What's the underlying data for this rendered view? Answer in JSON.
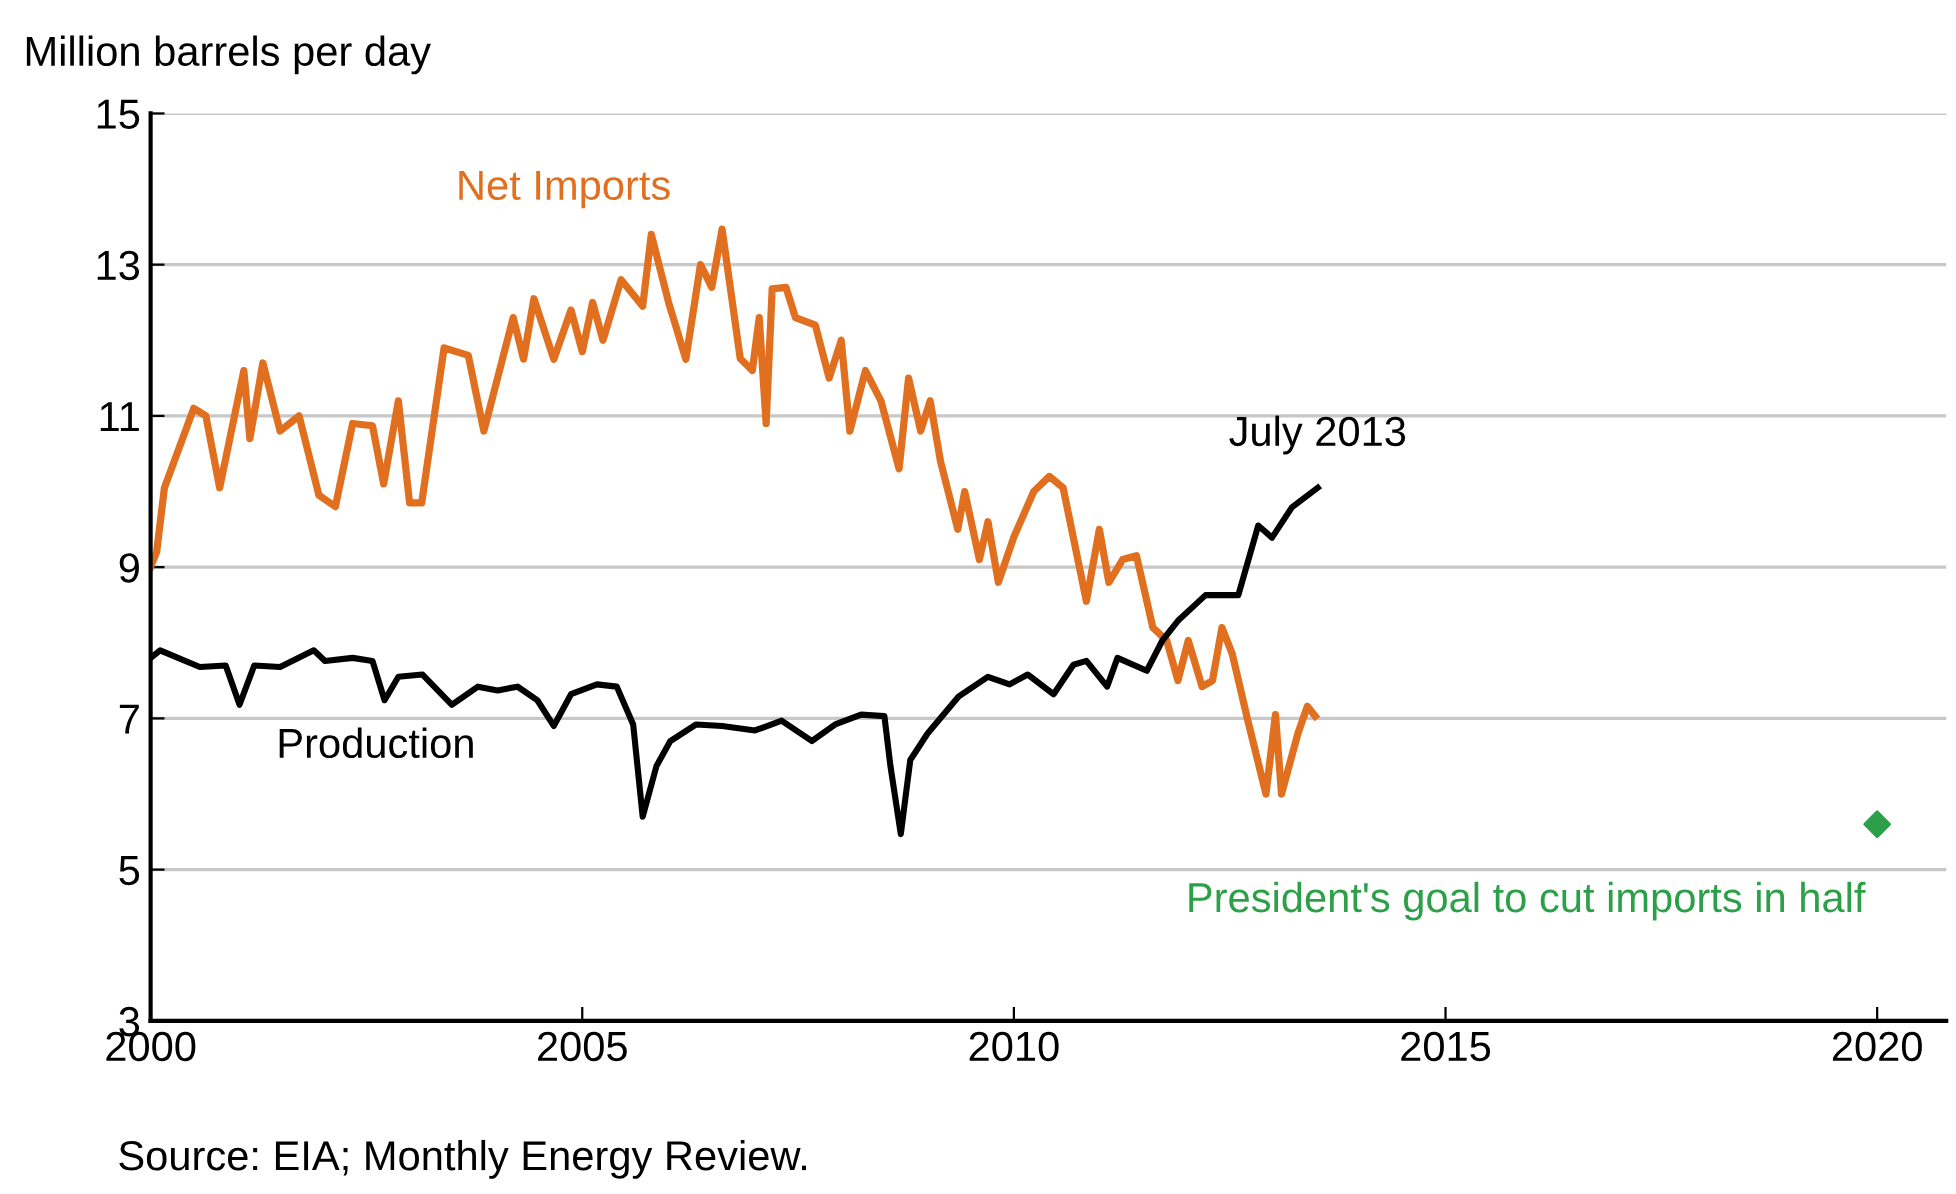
{
  "chart_data": {
    "type": "line",
    "ylabel": "Million barrels per day",
    "xlim": [
      2000,
      2020.8
    ],
    "xticks": [
      2000,
      2005,
      2010,
      2015,
      2020
    ],
    "ylim": [
      3,
      15
    ],
    "yticks": [
      3,
      5,
      7,
      9,
      11,
      13,
      15
    ],
    "grid": "y",
    "legend": false,
    "line_style": "solid",
    "annotations": [
      {
        "text": "July 2013",
        "x": 2013.52,
        "y": 10.05
      },
      "Source: EIA; Monthly Energy Review."
    ],
    "series": [
      {
        "name": "Net Imports",
        "color": "#e0701f",
        "x": [
          2000.0,
          2000.07,
          2000.16,
          2000.5,
          2000.64,
          2000.8,
          2001.08,
          2001.15,
          2001.3,
          2001.5,
          2001.72,
          2001.95,
          2002.14,
          2002.34,
          2002.57,
          2002.7,
          2002.87,
          2003.0,
          2003.14,
          2003.4,
          2003.68,
          2003.86,
          2004.2,
          2004.32,
          2004.44,
          2004.67,
          2004.87,
          2005.0,
          2005.12,
          2005.24,
          2005.45,
          2005.7,
          2005.8,
          2006.0,
          2006.2,
          2006.37,
          2006.5,
          2006.62,
          2006.83,
          2006.97,
          2007.05,
          2007.13,
          2007.2,
          2007.36,
          2007.47,
          2007.7,
          2007.86,
          2008.0,
          2008.1,
          2008.28,
          2008.46,
          2008.67,
          2008.78,
          2008.92,
          2009.03,
          2009.15,
          2009.35,
          2009.43,
          2009.6,
          2009.7,
          2009.82,
          2010.0,
          2010.23,
          2010.41,
          2010.57,
          2010.84,
          2010.99,
          2011.1,
          2011.26,
          2011.42,
          2011.61,
          2011.77,
          2011.9,
          2012.02,
          2012.18,
          2012.3,
          2012.41,
          2012.53,
          2012.71,
          2012.92,
          2013.03,
          2013.1,
          2013.29,
          2013.4,
          2013.49
        ],
        "values": [
          9.0,
          9.2,
          10.05,
          11.1,
          11.0,
          10.05,
          11.6,
          10.7,
          11.7,
          10.8,
          11.0,
          9.95,
          9.8,
          10.9,
          10.87,
          10.1,
          11.2,
          9.85,
          9.85,
          11.9,
          11.8,
          10.8,
          12.3,
          11.75,
          12.55,
          11.75,
          12.4,
          11.85,
          12.5,
          12.0,
          12.8,
          12.45,
          13.4,
          12.5,
          11.75,
          13.0,
          12.7,
          13.47,
          11.76,
          11.6,
          12.3,
          10.9,
          12.68,
          12.7,
          12.3,
          12.2,
          11.5,
          12.0,
          10.8,
          11.6,
          11.2,
          10.3,
          11.5,
          10.8,
          11.2,
          10.4,
          9.5,
          10.0,
          9.1,
          9.6,
          8.8,
          9.4,
          10.0,
          10.2,
          10.05,
          8.55,
          9.5,
          8.8,
          9.1,
          9.15,
          8.2,
          8.03,
          7.5,
          8.03,
          7.42,
          7.5,
          8.2,
          7.85,
          6.97,
          6.0,
          7.05,
          6.0,
          6.8,
          7.16,
          7.03
        ]
      },
      {
        "name": "Production",
        "color": "#000000",
        "x": [
          2000.0,
          2000.11,
          2000.57,
          2000.87,
          2001.03,
          2001.2,
          2001.5,
          2001.89,
          2002.02,
          2002.34,
          2002.57,
          2002.71,
          2002.87,
          2003.15,
          2003.49,
          2003.79,
          2004.02,
          2004.25,
          2004.48,
          2004.67,
          2004.87,
          2005.17,
          2005.4,
          2005.59,
          2005.7,
          2005.86,
          2006.02,
          2006.32,
          2006.62,
          2007.0,
          2007.31,
          2007.66,
          2007.93,
          2008.23,
          2008.5,
          2008.57,
          2008.69,
          2008.8,
          2009.0,
          2009.36,
          2009.7,
          2009.95,
          2010.16,
          2010.46,
          2010.69,
          2010.84,
          2011.08,
          2011.2,
          2011.54,
          2011.72,
          2011.9,
          2012.22,
          2012.6,
          2012.83,
          2012.99,
          2013.22,
          2013.52
        ],
        "values": [
          7.8,
          7.9,
          7.68,
          7.7,
          7.18,
          7.7,
          7.68,
          7.9,
          7.76,
          7.8,
          7.76,
          7.24,
          7.55,
          7.58,
          7.18,
          7.42,
          7.37,
          7.42,
          7.24,
          6.9,
          7.32,
          7.45,
          7.42,
          6.92,
          5.7,
          6.37,
          6.7,
          6.92,
          6.9,
          6.84,
          6.97,
          6.7,
          6.92,
          7.05,
          7.03,
          6.37,
          5.47,
          6.45,
          6.8,
          7.29,
          7.55,
          7.45,
          7.58,
          7.32,
          7.71,
          7.76,
          7.42,
          7.8,
          7.63,
          8.03,
          8.29,
          8.63,
          8.63,
          9.55,
          9.39,
          9.79,
          10.05
        ]
      },
      {
        "name": "President's goal to cut imports in half",
        "type": "scatter",
        "marker": "diamond",
        "color": "#2ca048",
        "x": [
          2020
        ],
        "values": [
          5.6
        ]
      }
    ]
  }
}
